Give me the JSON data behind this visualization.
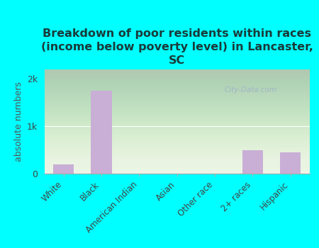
{
  "title": "Breakdown of poor residents within races\n(income below poverty level) in Lancaster,\nSC",
  "categories": [
    "White",
    "Black",
    "American Indian",
    "Asian",
    "Other race",
    "2+ races",
    "Hispanic"
  ],
  "values": [
    200,
    1750,
    0,
    0,
    0,
    500,
    450
  ],
  "bar_color": "#c9afd6",
  "ylabel": "absolute numbers",
  "ylim": [
    0,
    2200
  ],
  "yticks": [
    0,
    1000,
    2000
  ],
  "ytick_labels": [
    "0",
    "1k",
    "2k"
  ],
  "background_color": "#00ffff",
  "watermark": "City-Data.com",
  "title_fontsize": 11.5,
  "label_fontsize": 8.5,
  "ylabel_fontsize": 9,
  "tick_label_fontsize": 9
}
